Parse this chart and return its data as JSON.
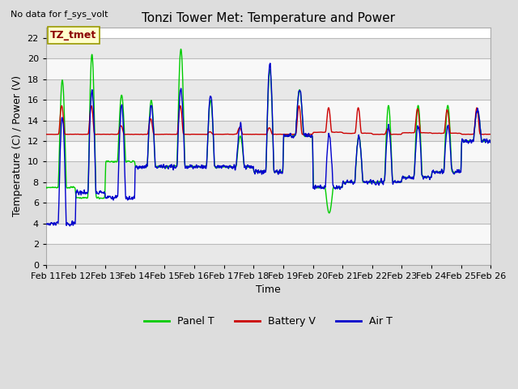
{
  "title": "Tonzi Tower Met: Temperature and Power",
  "top_left_text": "No data for f_sys_volt",
  "ylabel": "Temperature (C) / Power (V)",
  "xlabel": "Time",
  "annotation_label": "TZ_tmet",
  "annotation_box_color": "#ffffcc",
  "annotation_box_edge": "#999900",
  "ylim": [
    0,
    23
  ],
  "yticks": [
    0,
    2,
    4,
    6,
    8,
    10,
    12,
    14,
    16,
    18,
    20,
    22
  ],
  "xtick_labels": [
    "Feb 11",
    "Feb 12",
    "Feb 13",
    "Feb 14",
    "Feb 15",
    "Feb 16",
    "Feb 17",
    "Feb 18",
    "Feb 19",
    "Feb 20",
    "Feb 21",
    "Feb 22",
    "Feb 23",
    "Feb 24",
    "Feb 25",
    "Feb 26"
  ],
  "panel_color": "#00cc00",
  "battery_color": "#cc0000",
  "air_color": "#0000cc",
  "background_color": "#dddddd",
  "plot_bg_color": "#ffffff",
  "grid_color": "#cccccc",
  "band_colors": [
    "#e8e8e8",
    "#f8f8f8"
  ],
  "legend_labels": [
    "Panel T",
    "Battery V",
    "Air T"
  ],
  "title_fontsize": 11,
  "axis_label_fontsize": 9,
  "tick_fontsize": 8,
  "legend_fontsize": 9
}
